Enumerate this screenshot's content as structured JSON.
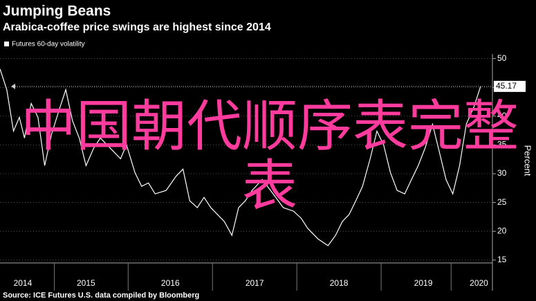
{
  "chart_data": {
    "type": "line",
    "title": "Jumping Beans",
    "subtitle": "Arabica-coffee price swings are highest since 2014",
    "y_axis_label": "Percent",
    "source": "Source: ICE Futures U.S. data compiled by Bloomberg",
    "watermark": "中国朝代顺序表完整表",
    "x": [
      2014.48,
      2014.56,
      2014.64,
      2014.71,
      2014.77,
      2014.85,
      2014.93,
      2015.01,
      2015.09,
      2015.18,
      2015.26,
      2015.34,
      2015.42,
      2015.5,
      2015.59,
      2015.67,
      2015.79,
      2015.91,
      2015.98,
      2016.08,
      2016.16,
      2016.24,
      2016.32,
      2016.45,
      2016.57,
      2016.65,
      2016.73,
      2016.82,
      2016.9,
      2016.98,
      2017.06,
      2017.14,
      2017.23,
      2017.31,
      2017.39,
      2017.47,
      2017.59,
      2017.72,
      2017.84,
      2017.96,
      2018.05,
      2018.13,
      2018.25,
      2018.37,
      2018.46,
      2018.54,
      2018.62,
      2018.7,
      2018.78,
      2018.87,
      2018.95,
      2019.03,
      2019.11,
      2019.19,
      2019.28,
      2019.36,
      2019.44,
      2019.52,
      2019.61,
      2019.69,
      2019.77,
      2019.85,
      2019.93,
      2020.01,
      2020.1,
      2020.18
    ],
    "series": [
      {
        "name": "Futures 60-day volatility",
        "color": "#ffffff",
        "values": [
          48.2,
          44.6,
          37.4,
          39.8,
          36.2,
          42.2,
          39.8,
          31.4,
          36.8,
          41,
          44.6,
          39.2,
          36.2,
          31.4,
          34.4,
          36.2,
          34.4,
          32.6,
          35,
          30.2,
          27.8,
          28.4,
          26.5,
          27.1,
          29.6,
          30.8,
          25.3,
          24.1,
          25.9,
          24.1,
          22.9,
          21.7,
          19.3,
          24.1,
          25.3,
          27.1,
          29,
          26.5,
          24.1,
          23.5,
          22.3,
          20.5,
          18.7,
          17.5,
          19.3,
          21.7,
          22.9,
          25.3,
          27.8,
          32.6,
          37.4,
          35,
          30.2,
          27.1,
          26.5,
          29,
          31.4,
          34.4,
          38.6,
          33.8,
          29,
          26.5,
          31.4,
          38.6,
          41.6,
          45.17
        ]
      }
    ],
    "last_value": 45.17,
    "xlim": [
      2014.48,
      2020.32
    ],
    "xticks": [
      {
        "value": 2014.75,
        "label": "2014"
      },
      {
        "value": 2015.5,
        "label": "2015"
      },
      {
        "value": 2016.5,
        "label": "2016"
      },
      {
        "value": 2017.5,
        "label": "2017"
      },
      {
        "value": 2018.5,
        "label": "2018"
      },
      {
        "value": 2019.5,
        "label": "2019"
      },
      {
        "value": 2020.16,
        "label": "2020"
      }
    ],
    "ylim": [
      14.5,
      50.8
    ],
    "yticks": [
      15,
      20,
      25,
      30,
      35,
      40,
      45,
      50
    ],
    "grid": true
  }
}
